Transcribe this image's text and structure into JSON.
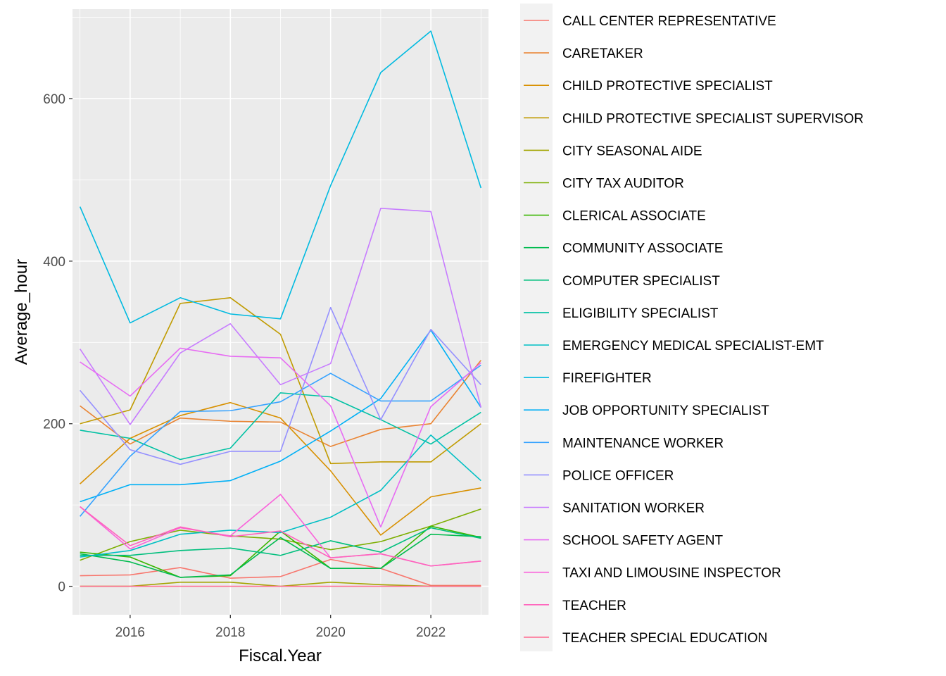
{
  "chart_data": {
    "type": "line",
    "xlabel": "Fiscal.Year",
    "ylabel": "Average_hour",
    "xlim": [
      2014.85,
      2023.15
    ],
    "ylim": [
      -35,
      710
    ],
    "x_ticks": [
      2016,
      2018,
      2020,
      2022
    ],
    "x_tick_labels": [
      "2016",
      "2018",
      "2020",
      "2022"
    ],
    "y_ticks": [
      0,
      200,
      400,
      600
    ],
    "y_tick_labels": [
      "0",
      "200",
      "400",
      "600"
    ],
    "grid": true,
    "legend_position": "right",
    "x": [
      2015,
      2016,
      2017,
      2018,
      2019,
      2020,
      2021,
      2022,
      2023
    ],
    "series": [
      {
        "name": "CALL CENTER REPRESENTATIVE",
        "color": "#F8766D",
        "values": [
          13,
          14,
          23,
          10,
          12,
          33,
          22,
          1,
          1
        ]
      },
      {
        "name": "CARETAKER",
        "color": "#EA8331",
        "values": [
          222,
          175,
          207,
          203,
          202,
          172,
          193,
          200,
          278
        ]
      },
      {
        "name": "CHILD PROTECTIVE SPECIALIST",
        "color": "#D89000",
        "values": [
          126,
          182,
          210,
          226,
          207,
          142,
          63,
          110,
          121
        ]
      },
      {
        "name": "CHILD PROTECTIVE SPECIALIST SUPERVISOR",
        "color": "#C09B00",
        "values": [
          200,
          217,
          348,
          355,
          310,
          151,
          153,
          153,
          200
        ]
      },
      {
        "name": "CITY SEASONAL AIDE",
        "color": "#A3A500",
        "values": [
          0,
          0,
          5,
          5,
          0,
          5,
          2,
          0,
          0
        ]
      },
      {
        "name": "CITY TAX AUDITOR",
        "color": "#7CAE00",
        "values": [
          32,
          55,
          69,
          62,
          58,
          45,
          55,
          74,
          95
        ]
      },
      {
        "name": "CLERICAL ASSOCIATE",
        "color": "#39B600",
        "values": [
          42,
          36,
          11,
          13,
          68,
          22,
          22,
          74,
          60
        ]
      },
      {
        "name": "COMMUNITY ASSOCIATE",
        "color": "#00BB4E",
        "values": [
          40,
          30,
          11,
          14,
          60,
          22,
          22,
          64,
          61
        ]
      },
      {
        "name": "COMPUTER SPECIALIST",
        "color": "#00BF7D",
        "values": [
          38,
          38,
          44,
          47,
          38,
          56,
          42,
          72,
          59
        ]
      },
      {
        "name": "ELIGIBILITY SPECIALIST",
        "color": "#00C1A3",
        "values": [
          192,
          182,
          156,
          170,
          238,
          233,
          205,
          175,
          214
        ]
      },
      {
        "name": "EMERGENCY MEDICAL SPECIALIST-EMT",
        "color": "#00BFC4",
        "values": [
          36,
          44,
          64,
          69,
          66,
          85,
          118,
          186,
          130
        ]
      },
      {
        "name": "FIREFIGHTER",
        "color": "#00BAE0",
        "values": [
          467,
          324,
          355,
          335,
          329,
          493,
          632,
          683,
          490
        ]
      },
      {
        "name": "JOB OPPORTUNITY SPECIALIST",
        "color": "#00B0F6",
        "values": [
          104,
          125,
          125,
          130,
          154,
          191,
          231,
          315,
          220
        ]
      },
      {
        "name": "MAINTENANCE WORKER",
        "color": "#35A2FF",
        "values": [
          86,
          160,
          215,
          216,
          227,
          262,
          228,
          228,
          272
        ]
      },
      {
        "name": "POLICE OFFICER",
        "color": "#9590FF",
        "values": [
          241,
          168,
          150,
          166,
          166,
          343,
          205,
          316,
          248
        ]
      },
      {
        "name": "SANITATION WORKER",
        "color": "#C77CFF",
        "values": [
          292,
          199,
          287,
          323,
          248,
          274,
          465,
          461,
          220
        ]
      },
      {
        "name": "SCHOOL SAFETY AGENT",
        "color": "#E76BF3",
        "values": [
          276,
          234,
          293,
          283,
          281,
          222,
          73,
          221,
          275
        ]
      },
      {
        "name": "TAXI AND LIMOUSINE INSPECTOR",
        "color": "#FA62DB",
        "values": [
          98,
          46,
          72,
          62,
          113,
          35,
          40,
          25,
          31
        ]
      },
      {
        "name": "TEACHER",
        "color": "#FF62BC",
        "values": [
          98,
          50,
          73,
          61,
          68,
          35,
          40,
          25,
          31
        ]
      },
      {
        "name": "TEACHER SPECIAL EDUCATION",
        "color": "#FF6C91",
        "values": [
          0,
          0,
          0,
          0,
          0,
          0,
          0,
          0,
          0
        ]
      }
    ]
  }
}
